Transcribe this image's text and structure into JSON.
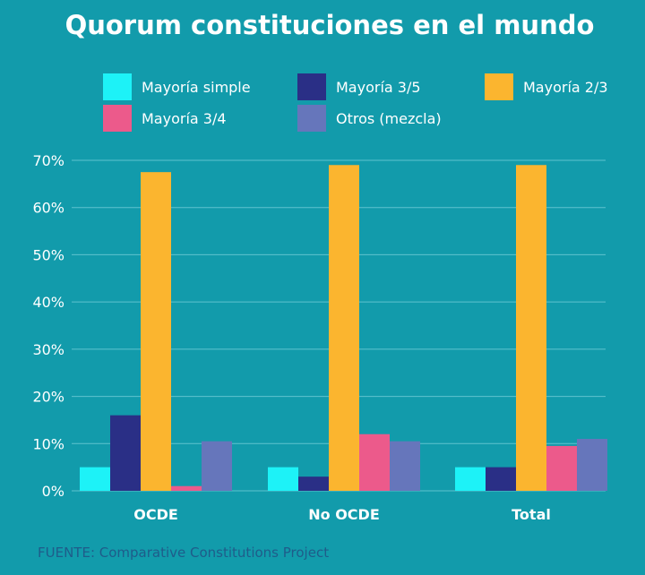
{
  "chart_data": {
    "type": "bar",
    "title": "Quorum constituciones en el mundo",
    "categories": [
      "OCDE",
      "No OCDE",
      "Total"
    ],
    "series": [
      {
        "name": "Mayoría simple",
        "color": "#1df2f7",
        "values": [
          5.0,
          5.0,
          5.0
        ]
      },
      {
        "name": "Mayoría 3/5",
        "color": "#2a2f86",
        "values": [
          16.0,
          3.0,
          5.0
        ]
      },
      {
        "name": "Mayoría 2/3",
        "color": "#fbb52f",
        "values": [
          67.5,
          69.0,
          69.0
        ]
      },
      {
        "name": "Mayoría 3/4",
        "color": "#ec5a8b",
        "values": [
          1.0,
          12.0,
          9.5
        ]
      },
      {
        "name": "Otros (mezcla)",
        "color": "#6676bb",
        "values": [
          10.5,
          10.5,
          11.0
        ]
      }
    ],
    "yticks": [
      "0%",
      "10%",
      "20%",
      "30%",
      "40%",
      "50%",
      "60%",
      "70%"
    ],
    "ylim": [
      0,
      70
    ],
    "xlabel": "",
    "ylabel": "",
    "grid": true,
    "legend": "top",
    "source": "FUENTE: Comparative Constitutions Project"
  },
  "colors": {
    "background": "#129bab",
    "grid": "#5fc3cf",
    "text": "#ffffff",
    "source_text": "#1f5c8a"
  }
}
